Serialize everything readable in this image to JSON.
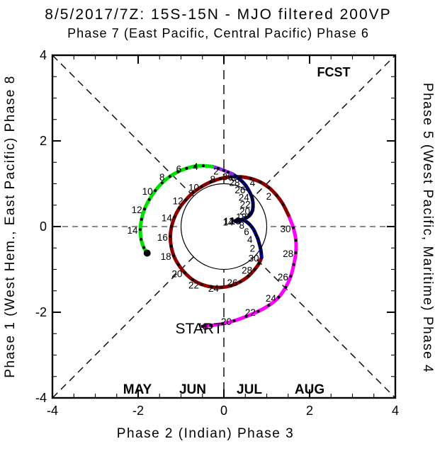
{
  "title": "8/5/2017/7Z: 15S-15N - MJO filtered 200VP",
  "axes": {
    "top_title": "Phase 7 (East Pacific, Central Pacific) Phase 6",
    "bottom_title": "Phase 2 (Indian) Phase 3",
    "left_title": "Phase 1 (West Hem., East Pacific) Phase 8",
    "right_title": "Phase 5 (West Pacific, Maritime) Phase 4",
    "tick_values": [
      -4,
      -2,
      0,
      2,
      4
    ],
    "minor_tick_step": 0.5,
    "axis_min": -4,
    "axis_max": 4
  },
  "annotations": {
    "start_label": "START",
    "fcst_label": "FCST",
    "fcst_color": "#00dd00"
  },
  "legend": {
    "items": [
      {
        "label": "MAY",
        "color": "#ff00ff"
      },
      {
        "label": "JUN",
        "color": "#8b0000"
      },
      {
        "label": "JUL",
        "color": "#00008b"
      },
      {
        "label": "AUG",
        "color": "#8a2be2"
      }
    ]
  },
  "chart_data": {
    "type": "line",
    "title": "MJO phase-space trajectory, daily points labeled by day of month",
    "xlabel": "Phase 2 (Indian) Phase 3",
    "ylabel": "Phase 1 (West Hem., East Pacific) Phase 8",
    "xlim": [
      -4,
      4
    ],
    "ylim": [
      -4,
      4
    ],
    "unit_circle_radius": 1,
    "grid": "dashed cross + diagonals, clipped at unit circle",
    "legend_position": "bottom inside",
    "series": [
      {
        "name": "MAY",
        "color": "#ff00ff",
        "start_day": 17,
        "label_days": [
          18,
          20,
          22,
          24,
          26,
          28,
          30
        ],
        "points": [
          [
            -0.5,
            -2.33
          ],
          [
            -0.31,
            -2.31
          ],
          [
            -0.03,
            -2.27
          ],
          [
            0.24,
            -2.2
          ],
          [
            0.52,
            -2.1
          ],
          [
            0.8,
            -1.98
          ],
          [
            1.05,
            -1.84
          ],
          [
            1.28,
            -1.65
          ],
          [
            1.44,
            -1.42
          ],
          [
            1.56,
            -1.16
          ],
          [
            1.63,
            -0.89
          ],
          [
            1.68,
            -0.61
          ],
          [
            1.68,
            -0.32
          ],
          [
            1.62,
            -0.03
          ],
          [
            1.51,
            0.26
          ]
        ]
      },
      {
        "name": "JUN",
        "color": "#8b0000",
        "start_day": 1,
        "label_days": [
          2,
          4,
          6,
          8,
          10,
          12,
          14,
          16,
          18,
          20,
          22,
          24,
          26,
          28,
          30
        ],
        "points": [
          [
            1.38,
            0.52
          ],
          [
            1.23,
            0.73
          ],
          [
            1.05,
            0.91
          ],
          [
            0.85,
            1.04
          ],
          [
            0.63,
            1.12
          ],
          [
            0.4,
            1.16
          ],
          [
            0.16,
            1.16
          ],
          [
            -0.08,
            1.12
          ],
          [
            -0.31,
            1.04
          ],
          [
            -0.52,
            0.93
          ],
          [
            -0.72,
            0.79
          ],
          [
            -0.89,
            0.62
          ],
          [
            -1.04,
            0.43
          ],
          [
            -1.15,
            0.22
          ],
          [
            -1.22,
            0.0
          ],
          [
            -1.25,
            -0.23
          ],
          [
            -1.23,
            -0.46
          ],
          [
            -1.17,
            -0.68
          ],
          [
            -1.06,
            -0.89
          ],
          [
            -0.91,
            -1.08
          ],
          [
            -0.73,
            -1.24
          ],
          [
            -0.52,
            -1.35
          ],
          [
            -0.29,
            -1.41
          ],
          [
            -0.06,
            -1.42
          ],
          [
            0.17,
            -1.38
          ],
          [
            0.38,
            -1.29
          ],
          [
            0.57,
            -1.16
          ],
          [
            0.72,
            -1.0
          ],
          [
            0.82,
            -0.86
          ],
          [
            0.88,
            -0.72
          ]
        ]
      },
      {
        "name": "JUL",
        "color": "#00008b",
        "start_day": 1,
        "label_days": [
          2,
          4,
          6,
          8,
          10,
          12,
          14,
          16,
          18,
          20,
          22,
          24,
          26,
          28,
          30
        ],
        "points": [
          [
            0.87,
            -0.6
          ],
          [
            0.85,
            -0.49
          ],
          [
            0.82,
            -0.38
          ],
          [
            0.79,
            -0.28
          ],
          [
            0.75,
            -0.19
          ],
          [
            0.71,
            -0.1
          ],
          [
            0.66,
            -0.02
          ],
          [
            0.6,
            0.05
          ],
          [
            0.53,
            0.11
          ],
          [
            0.45,
            0.15
          ],
          [
            0.37,
            0.16
          ],
          [
            0.3,
            0.15
          ],
          [
            0.26,
            0.13
          ],
          [
            0.28,
            0.12
          ],
          [
            0.35,
            0.13
          ],
          [
            0.44,
            0.16
          ],
          [
            0.52,
            0.2
          ],
          [
            0.59,
            0.25
          ],
          [
            0.64,
            0.31
          ],
          [
            0.67,
            0.38
          ],
          [
            0.68,
            0.46
          ],
          [
            0.68,
            0.54
          ],
          [
            0.67,
            0.62
          ],
          [
            0.65,
            0.7
          ],
          [
            0.61,
            0.79
          ],
          [
            0.56,
            0.88
          ],
          [
            0.5,
            0.97
          ],
          [
            0.43,
            1.05
          ],
          [
            0.35,
            1.12
          ],
          [
            0.27,
            1.18
          ],
          [
            0.2,
            1.23
          ]
        ]
      },
      {
        "name": "AUG",
        "color": "#8a2be2",
        "start_day": 1,
        "label_days": [
          2
        ],
        "points": [
          [
            0.1,
            1.27
          ],
          [
            0.0,
            1.31
          ],
          [
            -0.13,
            1.36
          ],
          [
            -0.27,
            1.4
          ]
        ]
      },
      {
        "name": "FCST",
        "color": "#00e000",
        "start_day": 4,
        "label_days": [
          4,
          6,
          8,
          10,
          12,
          14
        ],
        "end_dot": true,
        "points": [
          [
            -0.48,
            1.42
          ],
          [
            -0.67,
            1.41
          ],
          [
            -0.87,
            1.36
          ],
          [
            -1.07,
            1.28
          ],
          [
            -1.26,
            1.17
          ],
          [
            -1.44,
            1.02
          ],
          [
            -1.6,
            0.84
          ],
          [
            -1.74,
            0.63
          ],
          [
            -1.85,
            0.41
          ],
          [
            -1.92,
            0.17
          ],
          [
            -1.95,
            -0.07
          ],
          [
            -1.93,
            -0.3
          ],
          [
            -1.87,
            -0.49
          ],
          [
            -1.79,
            -0.62
          ]
        ]
      }
    ]
  }
}
